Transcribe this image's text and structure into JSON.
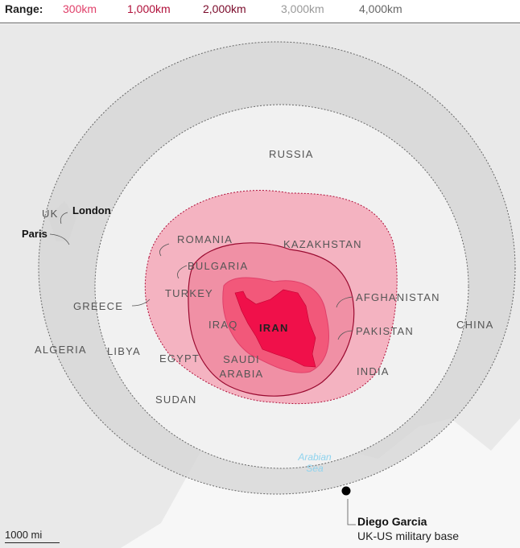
{
  "legend": {
    "title": "Range:",
    "items": [
      {
        "label": "300km",
        "color": "#e0406a"
      },
      {
        "label": "1,000km",
        "color": "#b0103a"
      },
      {
        "label": "2,000km",
        "color": "#7a0a2a"
      },
      {
        "label": "3,000km",
        "color": "#999999"
      },
      {
        "label": "4,000km",
        "color": "#666666"
      }
    ]
  },
  "countries": [
    "RUSSIA",
    "KAZAKHSTAN",
    "ROMANIA",
    "BULGARIA",
    "TURKEY",
    "GREECE",
    "AFGHANISTAN",
    "IRAQ",
    "IRAN",
    "PAKISTAN",
    "CHINA",
    "ALGERIA",
    "LIBYA",
    "EGYPT",
    "SAUDI ARABIA",
    "INDIA",
    "SUDAN",
    "UK"
  ],
  "cities": [
    "London",
    "Paris"
  ],
  "sea": "Arabian Sea",
  "base": {
    "name": "Diego Garcia",
    "description": "UK-US military base"
  },
  "scale": "1000 mi",
  "colors": {
    "iran": "#f0104a",
    "ring300": "#f2607f",
    "ring1000": "#f28ea3",
    "ring2000": "#f6b3c0",
    "ring3000": "#ececec",
    "ring4000": "#d9d9d9"
  }
}
